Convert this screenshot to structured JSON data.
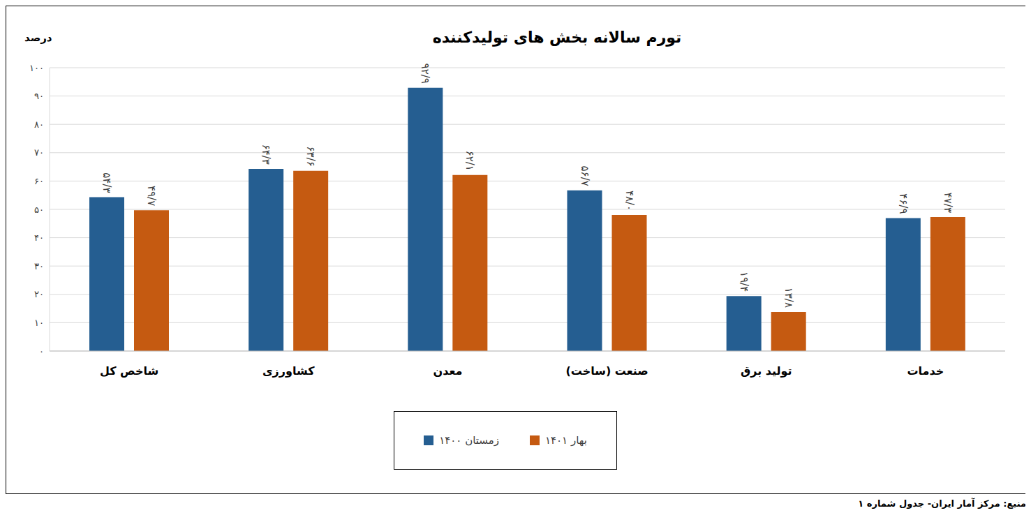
{
  "chart_data": {
    "type": "bar",
    "title": "تورم سالانه بخش های تولیدکننده",
    "y_label": "درصد",
    "source": "منبع: مرکز آمار ایران- جدول شماره ۱",
    "categories": [
      "شاخص کل",
      "کشاورزی",
      "معدن",
      "صنعت (ساخت)",
      "تولید برق",
      "خدمات"
    ],
    "series": [
      {
        "name": "زمستان ۱۴۰۰",
        "color": "#255e91",
        "values": [
          54.3,
          64.3,
          92.9,
          56.7,
          19.4,
          46.9
        ],
        "value_labels": [
          "۵۴/۳",
          "۶۴/۳",
          "۹۲/۹",
          "۵۶/۷",
          "۱۹/۴",
          "۴۶/۹"
        ]
      },
      {
        "name": "بهار ۱۴۰۱",
        "color": "#c55a11",
        "values": [
          49.7,
          63.6,
          62.1,
          48.0,
          13.8,
          47.3
        ],
        "value_labels": [
          "۴۹/۷",
          "۶۳/۶",
          "۶۲/۱",
          "۴۸/۰",
          "۱۳/۸",
          "۴۷/۳"
        ]
      }
    ],
    "ylim": [
      0,
      100
    ],
    "yticks": [
      {
        "value": 0,
        "label": "۰"
      },
      {
        "value": 10,
        "label": "۱۰"
      },
      {
        "value": 20,
        "label": "۲۰"
      },
      {
        "value": 30,
        "label": "۳۰"
      },
      {
        "value": 40,
        "label": "۴۰"
      },
      {
        "value": 50,
        "label": "۵۰"
      },
      {
        "value": 60,
        "label": "۶۰"
      },
      {
        "value": 70,
        "label": "۷۰"
      },
      {
        "value": 80,
        "label": "۸۰"
      },
      {
        "value": 90,
        "label": "۹۰"
      },
      {
        "value": 100,
        "label": "۱۰۰"
      }
    ],
    "grid": true,
    "legend": "bottom",
    "data_labels": true
  }
}
